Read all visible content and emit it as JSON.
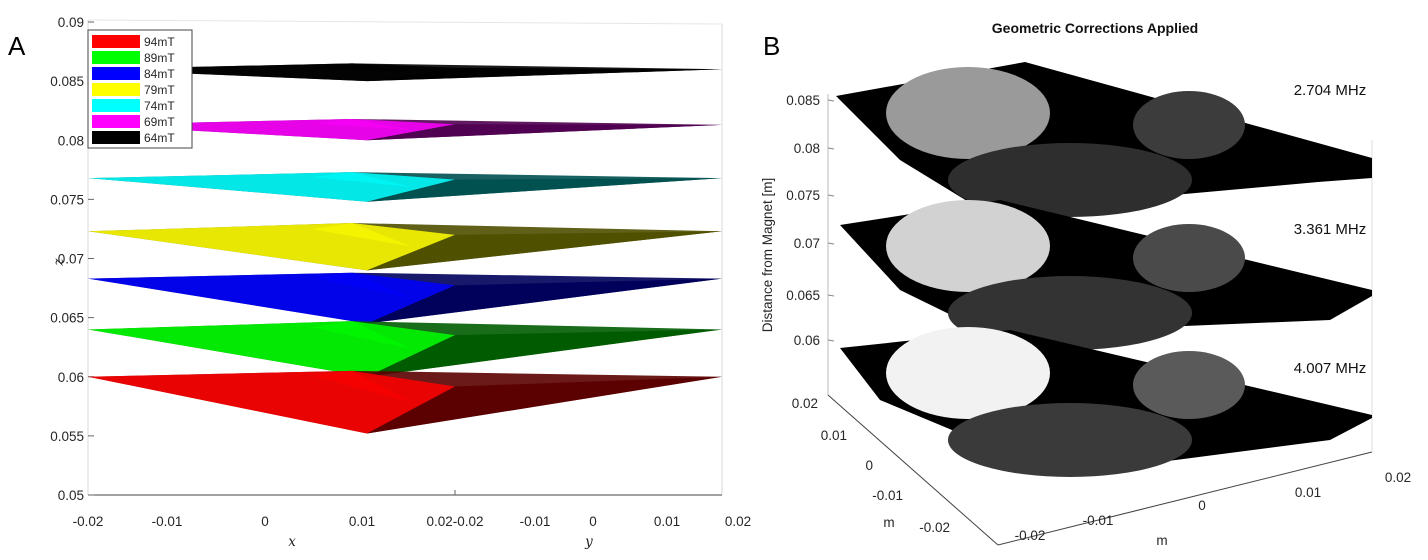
{
  "chart_data": [
    {
      "panel": "A",
      "type": "surface",
      "xlabel": "x",
      "ylabel": "y",
      "zlabel": "z",
      "zlim": [
        0.05,
        0.09
      ],
      "z_ticks": [
        "0.09",
        "0.085",
        "0.08",
        "0.075",
        "0.07",
        "0.065",
        "0.06",
        "0.055",
        "0.05"
      ],
      "x_ticks": [
        "-0.02",
        "-0.01",
        "0",
        "0.01",
        "0.02"
      ],
      "y_ticks": [
        "-0.02",
        "-0.01",
        "0",
        "0.01",
        "0.02"
      ],
      "legend_position": "top-left",
      "series": [
        {
          "name": "94mT",
          "color": "#ff0000",
          "dark": "#5c0000",
          "edge": 0.06,
          "peak": 0.0605,
          "low": 0.0552
        },
        {
          "name": "89mT",
          "color": "#00ff00",
          "dark": "#005c00",
          "edge": 0.064,
          "peak": 0.0647,
          "low": 0.06
        },
        {
          "name": "84mT",
          "color": "#0000ff",
          "dark": "#00005c",
          "edge": 0.0683,
          "peak": 0.0688,
          "low": 0.0645
        },
        {
          "name": "79mT",
          "color": "#ffff00",
          "dark": "#4f4f00",
          "edge": 0.0723,
          "peak": 0.073,
          "low": 0.069
        },
        {
          "name": "74mT",
          "color": "#00ffff",
          "dark": "#005050",
          "edge": 0.0768,
          "peak": 0.0773,
          "low": 0.0748
        },
        {
          "name": "69mT",
          "color": "#ff00ff",
          "dark": "#500050",
          "edge": 0.0813,
          "peak": 0.0818,
          "low": 0.08
        },
        {
          "name": "64mT",
          "color": "#000000",
          "dark": "#000000",
          "edge": 0.086,
          "peak": 0.0865,
          "low": 0.085
        }
      ]
    },
    {
      "panel": "B",
      "type": "surface-slices",
      "title": "Geometric Corrections Applied",
      "zlabel": "Distance from Magnet [m]",
      "xlabel": "m",
      "ylabel": "m",
      "z_ticks": [
        "0.085",
        "0.08",
        "0.075",
        "0.07",
        "0.065",
        "0.06"
      ],
      "y_ticks": [
        "0.02",
        "0.01",
        "0",
        "-0.01",
        "-0.02"
      ],
      "x_ticks": [
        "-0.02",
        "-0.01",
        "0",
        "0.01",
        "0.02"
      ],
      "slices": [
        {
          "label": "2.704 MHz",
          "phantom_gray": [
            "#9a9a9a",
            "#3c3c3c",
            "#2e2e2e"
          ]
        },
        {
          "label": "3.361 MHz",
          "phantom_gray": [
            "#d2d2d2",
            "#4a4a4a",
            "#333333"
          ]
        },
        {
          "label": "4.007 MHz",
          "phantom_gray": [
            "#f2f2f2",
            "#5a5a5a",
            "#3a3a3a"
          ]
        }
      ]
    }
  ]
}
